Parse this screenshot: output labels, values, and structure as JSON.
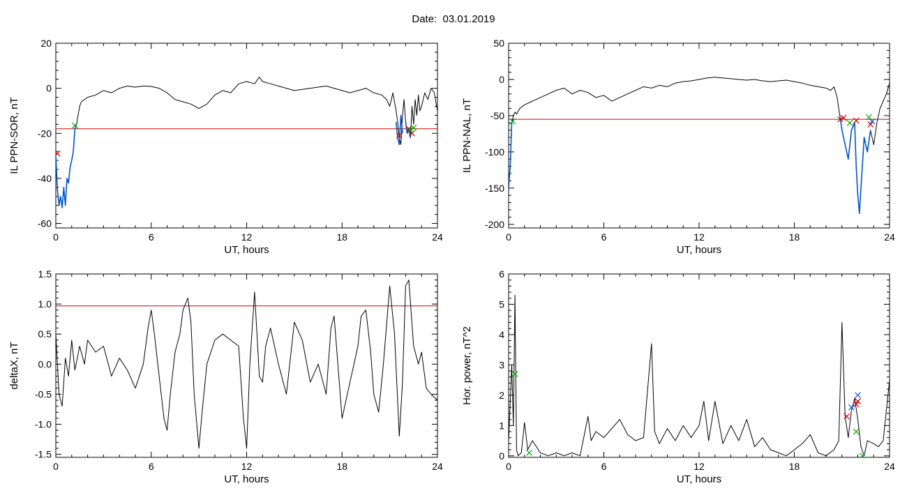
{
  "figure_title": "Date:  03.01.2019",
  "chart_data": [
    {
      "type": "line",
      "ylabel": "IL PPN-SOR, nT",
      "xlabel": "UT, hours",
      "xlim": [
        0,
        24
      ],
      "ylim": [
        -62,
        20
      ],
      "xticks": [
        0,
        6,
        12,
        18,
        24
      ],
      "yticks": [
        -60,
        -40,
        -20,
        0,
        20
      ],
      "threshold": -18,
      "threshold_color": "#cc0000",
      "series": [
        {
          "color": "#000000",
          "x": [
            0,
            0.1,
            0.2,
            0.3,
            0.4,
            0.5,
            0.6,
            0.7,
            0.8,
            0.9,
            1.0,
            1.1,
            1.2,
            1.3,
            1.4,
            1.5,
            1.6,
            1.8,
            2.0,
            2.5,
            3.0,
            3.5,
            4.0,
            4.5,
            5.0,
            5.5,
            6.0,
            6.5,
            7.0,
            7.5,
            8.0,
            8.5,
            9.0,
            9.5,
            10.0,
            10.5,
            11.0,
            11.5,
            12.0,
            12.5,
            12.8,
            13.0,
            13.5,
            14.0,
            14.5,
            15.0,
            15.5,
            16.0,
            16.5,
            17.0,
            17.5,
            18.0,
            18.5,
            19.0,
            19.5,
            20.0,
            20.5,
            20.8,
            21.0,
            21.2,
            21.4,
            21.5,
            21.6,
            21.7,
            21.8,
            21.9,
            22.0,
            22.1,
            22.2,
            22.3,
            22.4,
            22.5,
            22.6,
            22.7,
            22.8,
            22.9,
            23.0,
            23.2,
            23.4,
            23.6,
            23.8,
            24.0
          ],
          "y": [
            -30,
            -45,
            -52,
            -48,
            -53,
            -44,
            -52,
            -40,
            -42,
            -35,
            -32,
            -28,
            -18,
            -16,
            -12,
            -8,
            -6,
            -5,
            -4,
            -3,
            -1,
            -2,
            0,
            1,
            0.5,
            1,
            0.8,
            0,
            -2,
            -5,
            -6,
            -7,
            -9,
            -7,
            -3,
            -1,
            -2,
            2,
            3,
            2,
            5,
            3,
            2,
            1,
            0,
            -1,
            -0.5,
            0,
            0.5,
            1,
            0,
            -1,
            -2,
            -1,
            0,
            -2,
            -3,
            -5,
            -8,
            -2,
            -10,
            -15,
            -22,
            -25,
            -12,
            -5,
            -15,
            -20,
            -18,
            -22,
            -8,
            -16,
            -5,
            -12,
            -3,
            -10,
            -8,
            -2,
            -5,
            0,
            -2,
            -10
          ]
        },
        {
          "color": "#0055cc",
          "x": [
            0,
            0.1,
            0.2,
            0.3,
            0.4,
            0.5,
            0.6,
            0.7,
            0.8,
            0.9,
            1.0,
            1.1,
            1.2,
            1.3
          ],
          "y": [
            -30,
            -45,
            -52,
            -48,
            -53,
            -44,
            -52,
            -40,
            -42,
            -35,
            -32,
            -28,
            -18,
            -16
          ]
        },
        {
          "color": "#0055cc",
          "x": [
            21.4,
            21.5,
            21.6,
            21.7,
            21.8
          ],
          "y": [
            -15,
            -22,
            -25,
            -12,
            -20
          ]
        },
        {
          "color": "#0055cc",
          "x": [
            22.0,
            22.1,
            22.2,
            22.3
          ],
          "y": [
            -15,
            -20,
            -18,
            -22
          ]
        }
      ],
      "markers": [
        {
          "color": "#cc0000",
          "x": 0.1,
          "y": -29
        },
        {
          "color": "#00aa00",
          "x": 1.2,
          "y": -16.5
        },
        {
          "color": "#cc0000",
          "x": 21.6,
          "y": -21
        },
        {
          "color": "#cc0000",
          "x": 22.4,
          "y": -20
        },
        {
          "color": "#cc0000",
          "x": 22.2,
          "y": -18
        },
        {
          "color": "#00aa00",
          "x": 22.3,
          "y": -18.5
        },
        {
          "color": "#00aa00",
          "x": 22.5,
          "y": -17.5
        }
      ]
    },
    {
      "type": "line",
      "ylabel": "IL PPN-NAL, nT",
      "xlabel": "UT, hours",
      "xlim": [
        0,
        24
      ],
      "ylim": [
        -205,
        50
      ],
      "xticks": [
        0,
        6,
        12,
        18,
        24
      ],
      "yticks": [
        -200,
        -150,
        -100,
        -50,
        0,
        50
      ],
      "threshold": -55,
      "threshold_color": "#cc0000",
      "series": [
        {
          "color": "#000000",
          "x": [
            0,
            0.1,
            0.2,
            0.3,
            0.4,
            0.5,
            0.7,
            1.0,
            1.5,
            2.0,
            2.5,
            3.0,
            3.5,
            4.0,
            4.5,
            5.0,
            5.5,
            6.0,
            6.5,
            7.0,
            7.5,
            8.0,
            8.5,
            9.0,
            9.5,
            10.0,
            10.5,
            11.0,
            11.5,
            12.0,
            12.5,
            13.0,
            13.5,
            14.0,
            14.5,
            15.0,
            15.5,
            16.0,
            16.5,
            17.0,
            17.5,
            18.0,
            18.5,
            19.0,
            19.5,
            20.0,
            20.3,
            20.5,
            20.7,
            20.9,
            21.0,
            21.2,
            21.4,
            21.6,
            21.8,
            21.9,
            22.0,
            22.1,
            22.2,
            22.4,
            22.6,
            22.8,
            23.0,
            23.2,
            23.4,
            23.6,
            23.8,
            24.0
          ],
          "y": [
            -150,
            -120,
            -60,
            -50,
            -45,
            -48,
            -40,
            -35,
            -30,
            -25,
            -20,
            -15,
            -12,
            -20,
            -15,
            -18,
            -25,
            -22,
            -30,
            -25,
            -20,
            -15,
            -10,
            -12,
            -8,
            -10,
            -5,
            -3,
            -2,
            0,
            2,
            3,
            2,
            1,
            0,
            -1,
            0,
            -2,
            -3,
            -2,
            -1,
            -3,
            -5,
            -8,
            -10,
            -12,
            -15,
            -10,
            -25,
            -55,
            -70,
            -90,
            -110,
            -70,
            -60,
            -120,
            -160,
            -185,
            -150,
            -80,
            -100,
            -70,
            -90,
            -60,
            -40,
            -30,
            -20,
            -5
          ]
        },
        {
          "color": "#0055cc",
          "x": [
            0,
            0.1,
            0.2,
            0.3
          ],
          "y": [
            -150,
            -120,
            -60,
            -55
          ]
        },
        {
          "color": "#0055cc",
          "x": [
            20.9,
            21.0,
            21.2,
            21.4,
            21.6,
            21.8,
            21.9,
            22.0,
            22.1,
            22.2,
            22.4,
            22.6,
            22.8
          ],
          "y": [
            -55,
            -70,
            -90,
            -110,
            -70,
            -60,
            -120,
            -160,
            -185,
            -150,
            -80,
            -100,
            -70
          ]
        }
      ],
      "markers": [
        {
          "color": "#00aa00",
          "x": 0.25,
          "y": -58
        },
        {
          "color": "#cc0000",
          "x": 20.9,
          "y": -55
        },
        {
          "color": "#cc0000",
          "x": 21.1,
          "y": -53
        },
        {
          "color": "#00aa00",
          "x": 21.5,
          "y": -60
        },
        {
          "color": "#cc0000",
          "x": 21.9,
          "y": -57
        },
        {
          "color": "#00aa00",
          "x": 22.7,
          "y": -52
        },
        {
          "color": "#cc0000",
          "x": 22.8,
          "y": -62
        },
        {
          "color": "#0055cc",
          "x": 22.9,
          "y": -58
        }
      ]
    },
    {
      "type": "line",
      "ylabel": "deltaX, nT",
      "xlabel": "UT, hours",
      "xlim": [
        0,
        24
      ],
      "ylim": [
        -1.55,
        1.5
      ],
      "xticks": [
        0,
        6,
        12,
        18,
        24
      ],
      "yticks": [
        -1.5,
        -1.0,
        -0.5,
        0.0,
        0.5,
        1.0,
        1.5
      ],
      "ytick_labels": [
        "-1.5",
        "-1.0",
        "-0.5",
        "0.0",
        "0.5",
        "1.0",
        "1.5"
      ],
      "threshold": 0.97,
      "threshold_color": "#cc0000",
      "series": [
        {
          "color": "#000000",
          "x": [
            0,
            0.2,
            0.4,
            0.6,
            0.8,
            1.0,
            1.2,
            1.5,
            1.8,
            2.0,
            2.5,
            3.0,
            3.5,
            4.0,
            4.5,
            5.0,
            5.5,
            5.8,
            6.0,
            6.2,
            6.5,
            6.8,
            7.0,
            7.2,
            7.5,
            7.8,
            8.0,
            8.3,
            8.5,
            8.7,
            9.0,
            9.2,
            9.5,
            10.0,
            10.5,
            11.0,
            11.5,
            11.8,
            12.0,
            12.2,
            12.5,
            12.8,
            13.0,
            13.2,
            13.5,
            14.0,
            14.5,
            15.0,
            15.5,
            16.0,
            16.5,
            17.0,
            17.3,
            17.5,
            18.0,
            18.5,
            19.0,
            19.2,
            19.5,
            19.8,
            20.0,
            20.3,
            20.6,
            21.0,
            21.3,
            21.6,
            21.8,
            22.0,
            22.2,
            22.5,
            22.8,
            23.0,
            23.3,
            23.6,
            24.0
          ],
          "y": [
            0.5,
            -0.5,
            -0.7,
            0.1,
            -0.2,
            0.4,
            -0.1,
            0.3,
            0.0,
            0.4,
            0.2,
            0.3,
            -0.2,
            0.1,
            -0.1,
            -0.4,
            0.0,
            0.6,
            0.9,
            0.5,
            -0.2,
            -0.9,
            -1.1,
            -0.5,
            0.2,
            0.5,
            0.9,
            1.1,
            0.7,
            -0.5,
            -1.4,
            -0.8,
            0.0,
            0.4,
            0.5,
            0.4,
            0.3,
            -0.9,
            -1.4,
            0.0,
            1.2,
            -0.2,
            -0.3,
            0.3,
            0.6,
            0.0,
            -0.5,
            0.7,
            0.4,
            -0.3,
            0.0,
            -0.5,
            0.6,
            0.8,
            -0.9,
            -0.3,
            0.3,
            0.8,
            0.9,
            0.2,
            -0.5,
            -0.8,
            0.0,
            1.3,
            0.5,
            -1.2,
            -0.3,
            1.3,
            1.4,
            0.3,
            0.0,
            0.2,
            -0.4,
            -0.5,
            -0.6
          ]
        }
      ],
      "markers": []
    },
    {
      "type": "line",
      "ylabel": "Hor. power, nT^2",
      "xlabel": "UT, hours",
      "xlim": [
        0,
        24
      ],
      "ylim": [
        -0.05,
        6
      ],
      "xticks": [
        0,
        6,
        12,
        18,
        24
      ],
      "yticks": [
        0,
        1,
        2,
        3,
        4,
        5,
        6
      ],
      "series": [
        {
          "color": "#000000",
          "x": [
            0,
            0.2,
            0.3,
            0.4,
            0.5,
            0.6,
            0.8,
            1.0,
            1.2,
            1.5,
            2.0,
            2.5,
            3.0,
            3.5,
            4.0,
            4.5,
            5.0,
            5.2,
            5.5,
            6.0,
            6.5,
            7.0,
            7.5,
            8.0,
            8.5,
            9.0,
            9.2,
            9.5,
            10.0,
            10.5,
            11.0,
            11.5,
            12.0,
            12.3,
            12.6,
            13.0,
            13.5,
            14.0,
            14.5,
            15.0,
            15.5,
            16.0,
            16.5,
            17.0,
            17.5,
            18.0,
            18.5,
            19.0,
            19.5,
            20.0,
            20.5,
            20.8,
            21.0,
            21.2,
            21.4,
            21.6,
            21.8,
            22.0,
            22.2,
            22.4,
            22.6,
            23.0,
            23.3,
            23.6,
            24.0
          ],
          "y": [
            0.5,
            3.0,
            1.0,
            5.3,
            0.2,
            0.0,
            0.1,
            1.1,
            0.2,
            0.5,
            0.1,
            0.0,
            0.1,
            0.0,
            0.1,
            0.0,
            1.3,
            0.5,
            0.8,
            0.6,
            0.9,
            1.2,
            0.7,
            0.5,
            0.6,
            3.7,
            0.8,
            0.4,
            0.9,
            0.5,
            1.0,
            0.6,
            1.0,
            1.8,
            0.5,
            1.8,
            0.4,
            1.0,
            0.5,
            1.2,
            0.3,
            0.6,
            0.2,
            0.1,
            0.0,
            0.2,
            0.4,
            0.7,
            0.1,
            0.0,
            0.2,
            0.5,
            4.4,
            1.3,
            0.6,
            1.5,
            1.9,
            1.2,
            0.3,
            0.0,
            0.5,
            0.4,
            0.3,
            0.5,
            2.5
          ]
        }
      ],
      "markers": [
        {
          "color": "#00aa00",
          "x": 0.4,
          "y": 2.7
        },
        {
          "color": "#00aa00",
          "x": 1.3,
          "y": 0.1
        },
        {
          "color": "#cc0000",
          "x": 21.3,
          "y": 1.3
        },
        {
          "color": "#0055cc",
          "x": 21.6,
          "y": 1.6
        },
        {
          "color": "#cc0000",
          "x": 21.9,
          "y": 1.7
        },
        {
          "color": "#0055cc",
          "x": 22.0,
          "y": 2.0
        },
        {
          "color": "#cc0000",
          "x": 22.0,
          "y": 1.8
        },
        {
          "color": "#00aa00",
          "x": 21.9,
          "y": 0.8
        },
        {
          "color": "#00aa00",
          "x": 22.3,
          "y": 0.0
        }
      ]
    }
  ]
}
